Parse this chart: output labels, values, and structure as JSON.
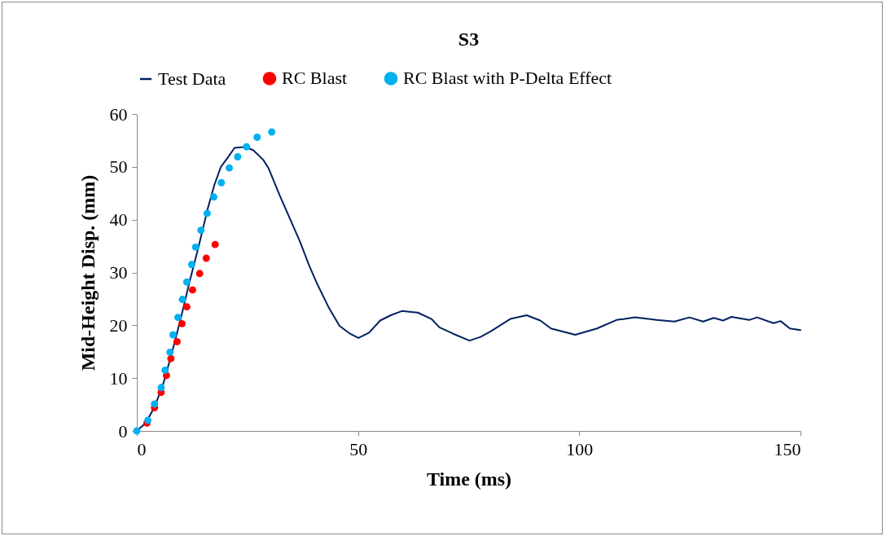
{
  "chart_data": {
    "type": "line",
    "title": "S3",
    "xlabel": "Time (ms)",
    "ylabel": "Mid-Height Disp. (mm)",
    "xlim": [
      0,
      150
    ],
    "xticks": [
      0,
      50,
      100,
      150
    ],
    "ylim": [
      0,
      60
    ],
    "yticks": [
      0,
      10,
      20,
      30,
      40,
      50,
      60
    ],
    "grid": false,
    "legend": "top",
    "series": [
      {
        "name": "Test Data",
        "color": "#002060",
        "marker": "none",
        "x": [
          0,
          2,
          4,
          6,
          8,
          10,
          12,
          14,
          16,
          17.5,
          19,
          20.6,
          22.1,
          24.6,
          26.4,
          28.6,
          29.8,
          32.3,
          34.7,
          36.9,
          39,
          40.9,
          43.3,
          45.8,
          48.2,
          50.1,
          52.5,
          55,
          57.4,
          59.9,
          63.5,
          66.6,
          68.4,
          71.5,
          75.2,
          77.7,
          80.1,
          84.4,
          88.1,
          91.2,
          93.6,
          99.1,
          104,
          108.4,
          112.6,
          117.5,
          121.5,
          124.9,
          128,
          130.4,
          132.5,
          134.4,
          138.4,
          140.2,
          143.9,
          145.5,
          147.6,
          150
        ],
        "values": [
          0,
          1.5,
          4.5,
          9,
          15,
          21.5,
          28.5,
          35,
          42,
          46.5,
          50,
          51.8,
          53.6,
          53.8,
          53.1,
          51.3,
          49.7,
          44.6,
          40,
          35.8,
          31.2,
          27.6,
          23.5,
          19.9,
          18.4,
          17.6,
          18.6,
          20.9,
          21.9,
          22.7,
          22.4,
          21.2,
          19.6,
          18.4,
          17.1,
          17.8,
          18.9,
          21.2,
          21.9,
          20.9,
          19.4,
          18.2,
          19.4,
          21,
          21.5,
          21,
          20.7,
          21.5,
          20.7,
          21.4,
          20.9,
          21.6,
          21,
          21.5,
          20.4,
          20.8,
          19.4,
          19.1
        ]
      },
      {
        "name": "RC Blast",
        "type": "scatter",
        "color": "#ff0000",
        "marker": "circle",
        "x": [
          2.3,
          4,
          5.5,
          6.7,
          7.7,
          9.1,
          10.2,
          11.3,
          12.6,
          14.2,
          15.7,
          17.7
        ],
        "values": [
          1.5,
          4.4,
          7.3,
          10.5,
          13.7,
          16.9,
          20.3,
          23.5,
          26.7,
          29.8,
          32.7,
          35.3
        ]
      },
      {
        "name": "RC Blast with P-Delta Effect",
        "type": "scatter",
        "color": "#00b0f0",
        "marker": "circle",
        "x": [
          0,
          2.5,
          4,
          5.5,
          6.4,
          7.5,
          8.2,
          9.3,
          10.3,
          11.3,
          12.4,
          13.3,
          14.5,
          15.9,
          17.4,
          19.1,
          20.9,
          22.8,
          24.8,
          27.2,
          30.5
        ],
        "values": [
          0,
          2,
          5.1,
          8.2,
          11.5,
          14.9,
          18.2,
          21.5,
          24.9,
          28.2,
          31.5,
          34.8,
          38,
          41.2,
          44.3,
          47,
          49.8,
          51.9,
          53.8,
          55.6,
          56.6
        ]
      }
    ]
  }
}
